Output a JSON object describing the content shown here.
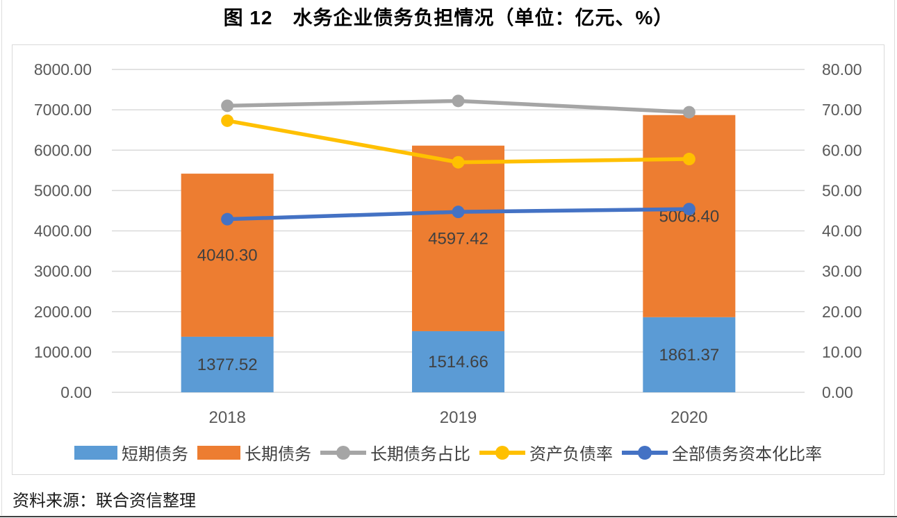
{
  "page": {
    "title": "图 12　水务企业债务负担情况（单位：亿元、%）",
    "source_note": "资料来源：联合资信整理"
  },
  "colors": {
    "short_term_bar": "#5B9BD5",
    "long_term_bar": "#ED7D31",
    "long_term_ratio_line": "#A5A5A5",
    "asset_liability_line": "#FFC000",
    "debt_capitalization_line": "#4472C4",
    "gridline": "#D9D9D9",
    "tick_label": "#595959",
    "category_label": "#595959",
    "data_label": "#404040",
    "chart_border": "#D9D9D9"
  },
  "chart_data": {
    "type": "bar",
    "subtype": "stacked-column-with-lines",
    "title": "图 12　水务企业债务负担情况（单位：亿元、%）",
    "unit_left": "亿元",
    "unit_right": "%",
    "categories": [
      "2018",
      "2019",
      "2020"
    ],
    "bar_series": [
      {
        "name": "短期债务",
        "color": "#5B9BD5",
        "axis": "left",
        "values": [
          1377.52,
          1514.66,
          1861.37
        ],
        "labels": [
          "1377.52",
          "1514.66",
          "1861.37"
        ]
      },
      {
        "name": "长期债务",
        "color": "#ED7D31",
        "axis": "left",
        "values": [
          4040.3,
          4597.42,
          5008.4
        ],
        "labels": [
          "4040.30",
          "4597.42",
          "5008.40"
        ]
      }
    ],
    "line_series": [
      {
        "name": "长期债务占比",
        "color": "#A5A5A5",
        "axis": "right",
        "values": [
          71.0,
          72.2,
          69.4
        ]
      },
      {
        "name": "资产负债率",
        "color": "#FFC000",
        "axis": "right",
        "values": [
          67.3,
          57.0,
          57.8
        ]
      },
      {
        "name": "全部债务资本化比率",
        "color": "#4472C4",
        "axis": "right",
        "values": [
          42.9,
          44.7,
          45.4
        ]
      }
    ],
    "left_axis": {
      "min": 0,
      "max": 8000,
      "step": 1000,
      "ticks": [
        "8000.00",
        "7000.00",
        "6000.00",
        "5000.00",
        "4000.00",
        "3000.00",
        "2000.00",
        "1000.00",
        "0.00"
      ]
    },
    "right_axis": {
      "min": 0,
      "max": 80,
      "step": 10,
      "ticks": [
        "80.00",
        "70.00",
        "60.00",
        "50.00",
        "40.00",
        "30.00",
        "20.00",
        "10.00",
        "0.00"
      ]
    },
    "grid": true,
    "stacked": true,
    "legend_position": "bottom",
    "bar_labels_visible": true
  }
}
